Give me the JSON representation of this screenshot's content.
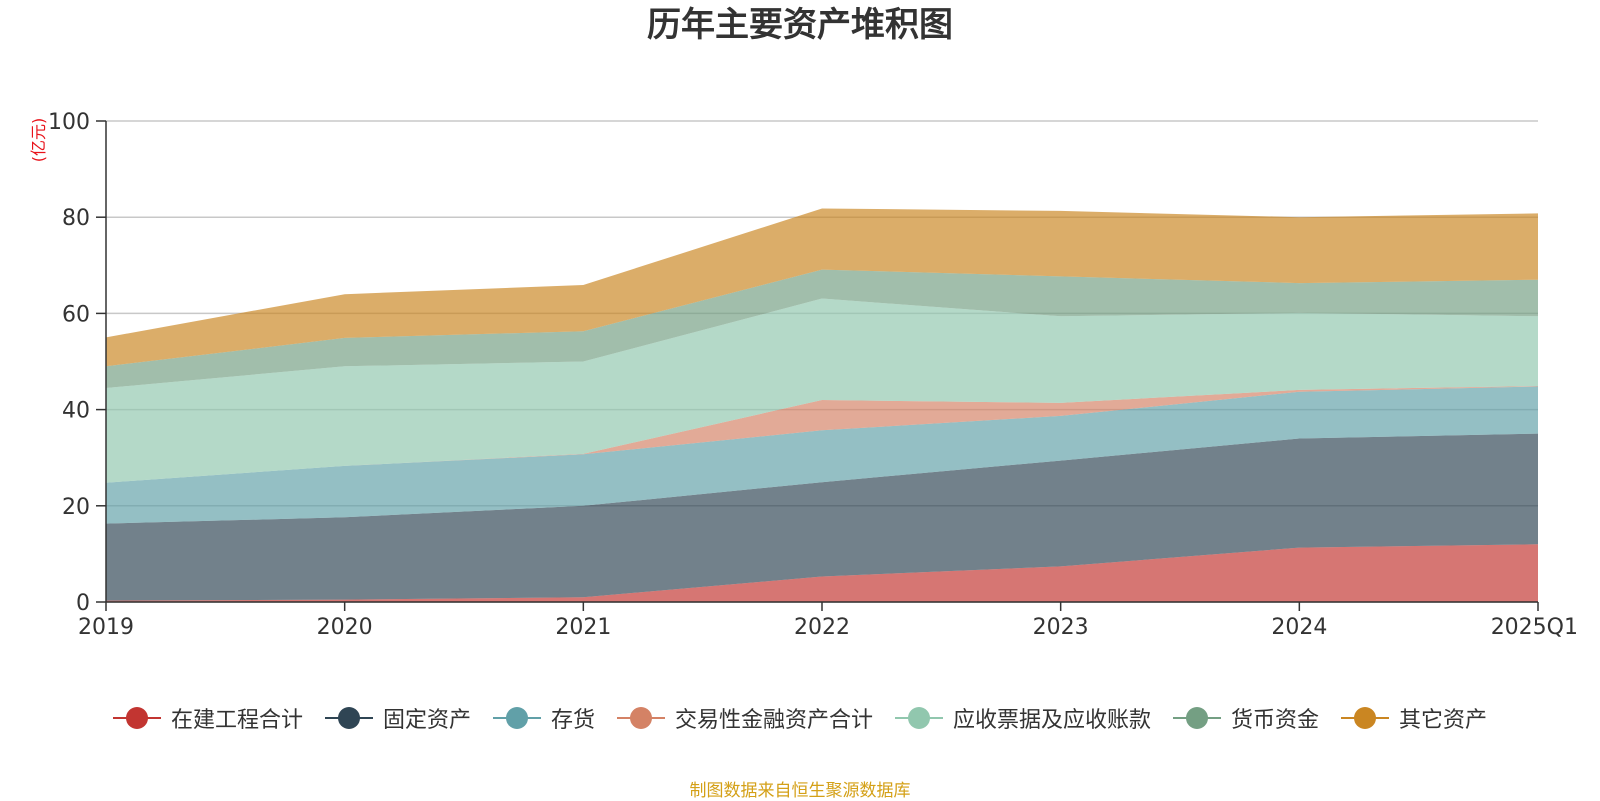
{
  "chart_data": {
    "type": "area",
    "title": "历年主要资产堆积图",
    "unit_label": "(亿元)",
    "categories": [
      "2019",
      "2020",
      "2021",
      "2022",
      "2023",
      "2024",
      "2025Q1"
    ],
    "ylim": [
      0,
      100
    ],
    "yticks": [
      0,
      20,
      40,
      60,
      80,
      100
    ],
    "stacked": true,
    "grid": true,
    "legend_position": "bottom",
    "series": [
      {
        "name": "在建工程合计",
        "color": "#c23531",
        "values": [
          0.3,
          0.5,
          1.0,
          5.3,
          7.4,
          11.3,
          12.0
        ]
      },
      {
        "name": "固定资产",
        "color": "#2f4554",
        "values": [
          16.0,
          17.1,
          19.0,
          19.6,
          22.0,
          22.7,
          23.0
        ]
      },
      {
        "name": "存货",
        "color": "#61a0a8",
        "values": [
          8.5,
          10.7,
          10.7,
          10.8,
          9.3,
          9.7,
          9.8
        ]
      },
      {
        "name": "交易性金融资产合计",
        "color": "#d48265",
        "values": [
          0.0,
          0.0,
          0.1,
          6.3,
          2.7,
          0.4,
          0.1
        ]
      },
      {
        "name": "应收票据及应收账款",
        "color": "#91c7ae",
        "values": [
          19.7,
          20.7,
          19.2,
          21.1,
          18.0,
          16.0,
          14.5
        ]
      },
      {
        "name": "货币资金",
        "color": "#749f83",
        "values": [
          4.5,
          5.9,
          6.3,
          6.0,
          8.3,
          6.2,
          7.6
        ]
      },
      {
        "name": "其它资产",
        "color": "#ca8622",
        "values": [
          6.0,
          9.1,
          9.6,
          12.7,
          13.6,
          13.7,
          13.8
        ]
      }
    ]
  },
  "source_text": "制图数据来自恒生聚源数据库"
}
